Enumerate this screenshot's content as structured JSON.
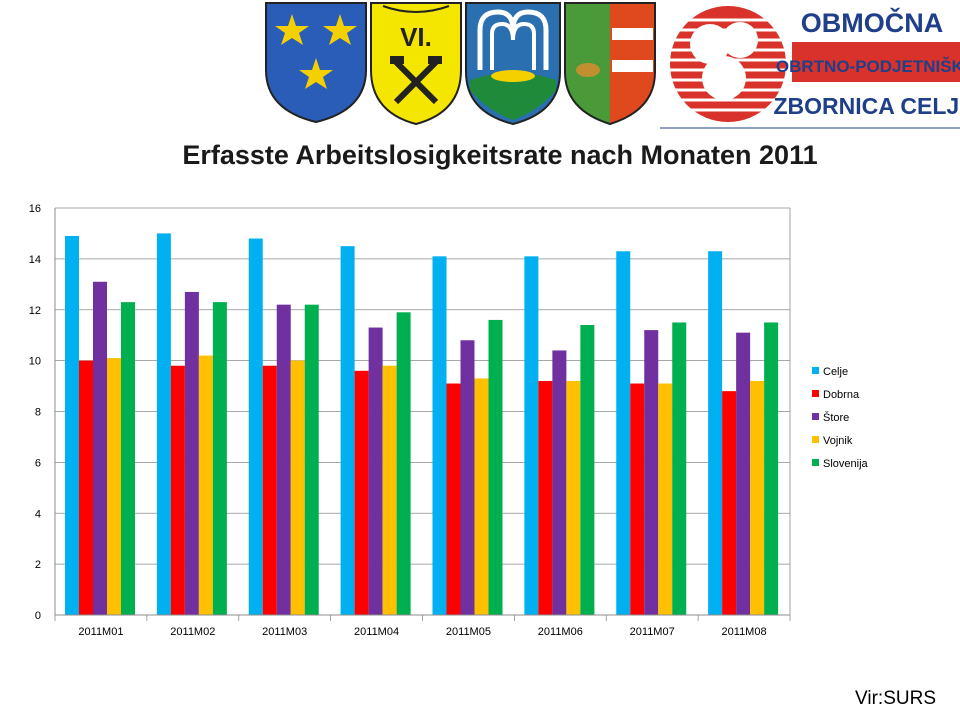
{
  "header": {
    "logos": [
      {
        "name": "stars-coat-of-arms",
        "colors": {
          "field": "#2a5db8",
          "charge": "#f5d000"
        }
      },
      {
        "name": "vi-miners-coat-of-arms",
        "text": "VI.",
        "colors": {
          "field": "#f5e600",
          "charge": "#222222"
        }
      },
      {
        "name": "fountain-coat-of-arms",
        "colors": {
          "field": "#2a6fb0",
          "charge": "#ffffff",
          "base": "#1f8a3a"
        }
      },
      {
        "name": "green-red-coat-of-arms",
        "colors": {
          "left": "#4a9a3a",
          "right": "#e0481e"
        }
      },
      {
        "name": "chamber-logo",
        "lines": [
          "OBMOČNA",
          "OBRTNO-PODJETNIŠKA",
          "ZBORNICA CELJE"
        ],
        "colors": {
          "red": "#d8322a",
          "blue": "#1f3f8a"
        }
      }
    ]
  },
  "source_label": "Vir:SURS",
  "chart_data": {
    "type": "bar",
    "title": "Erfasste Arbeitslosigkeitsrate nach Monaten 2011",
    "xlabel": "",
    "ylabel": "",
    "ylim": [
      0,
      16
    ],
    "yticks": [
      0,
      2,
      4,
      6,
      8,
      10,
      12,
      14,
      16
    ],
    "grid": true,
    "legend_position": "right",
    "categories": [
      "2011M01",
      "2011M02",
      "2011M03",
      "2011M04",
      "2011M05",
      "2011M06",
      "2011M07",
      "2011M08"
    ],
    "series": [
      {
        "name": "Celje",
        "color": "#00b0f0",
        "values": [
          14.9,
          15.0,
          14.8,
          14.5,
          14.1,
          14.1,
          14.3,
          14.3
        ]
      },
      {
        "name": "Dobrna",
        "color": "#ff0000",
        "values": [
          10.0,
          9.8,
          9.8,
          9.6,
          9.1,
          9.2,
          9.1,
          8.8
        ]
      },
      {
        "name": "Štore",
        "color": "#7030a0",
        "values": [
          13.1,
          12.7,
          12.2,
          11.3,
          10.8,
          10.4,
          11.2,
          11.1
        ]
      },
      {
        "name": "Vojnik",
        "color": "#ffc000",
        "values": [
          10.1,
          10.2,
          10.0,
          9.8,
          9.3,
          9.2,
          9.1,
          9.2
        ]
      },
      {
        "name": "Slovenija",
        "color": "#00b050",
        "values": [
          12.3,
          12.3,
          12.2,
          11.9,
          11.6,
          11.4,
          11.5,
          11.5
        ]
      }
    ]
  }
}
